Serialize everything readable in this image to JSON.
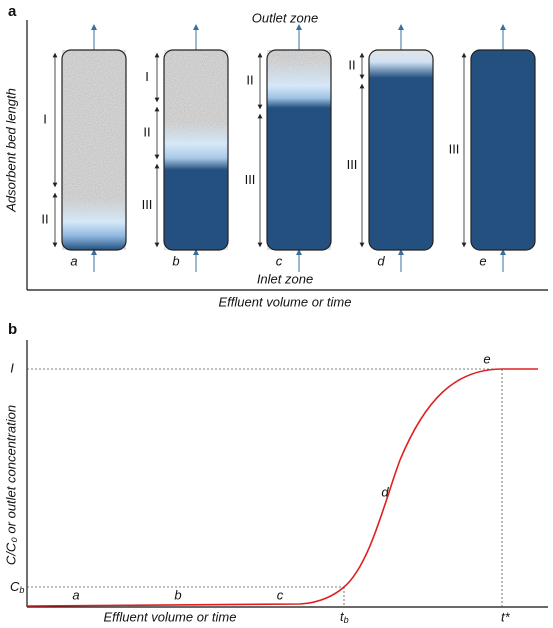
{
  "panel_a": {
    "label": "a",
    "top_label": "Outlet zone",
    "bottom_label": "Inlet zone",
    "y_axis_label": "Adsorbent bed length",
    "x_axis_label": "Effluent volume or time",
    "columns": [
      {
        "label": "a",
        "zones": [
          "I",
          "II"
        ]
      },
      {
        "label": "b",
        "zones": [
          "I",
          "II",
          "III"
        ]
      },
      {
        "label": "c",
        "zones": [
          "II",
          "III"
        ]
      },
      {
        "label": "d",
        "zones": [
          "II",
          "III"
        ]
      },
      {
        "label": "e",
        "zones": [
          "III"
        ]
      }
    ]
  },
  "panel_b": {
    "label": "b",
    "y_axis_label": "C/C₀ or outlet concentration",
    "y_top_label": "I",
    "y_break_label": {
      "base": "C",
      "sub": "b"
    },
    "x_break_label": {
      "base": "t",
      "sub": "b"
    },
    "x_end_label": "t*",
    "x_axis_label": "Effluent volume or time",
    "curve_labels": [
      "a",
      "b",
      "c",
      "d",
      "e"
    ]
  }
}
